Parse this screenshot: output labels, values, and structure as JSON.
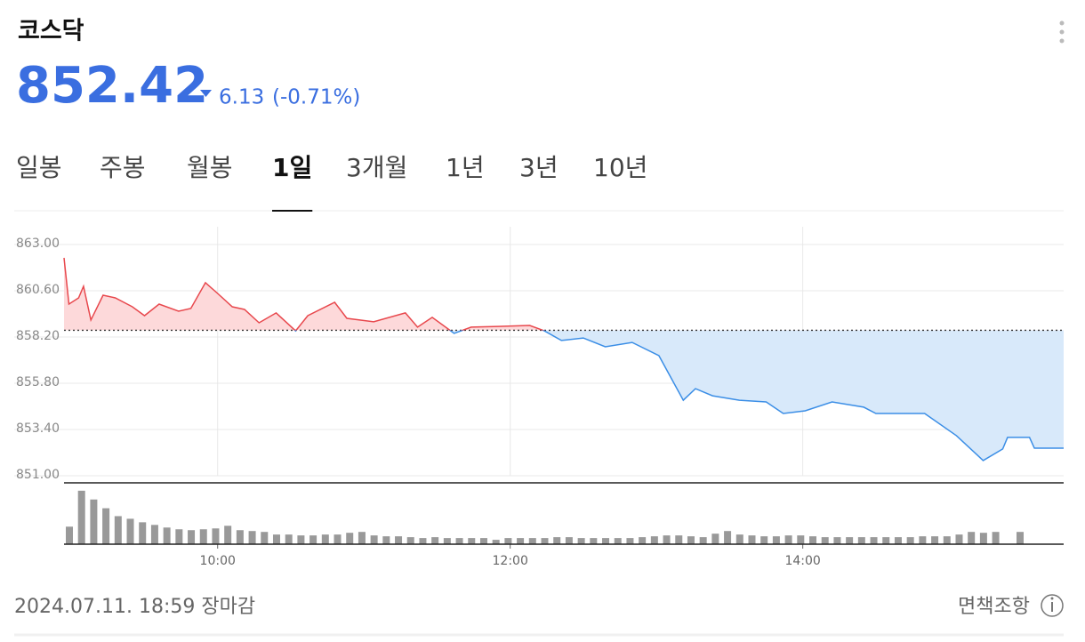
{
  "header": {
    "title": "코스닥",
    "price": "852.42",
    "change": "6.13",
    "change_pct": "(-0.71%)"
  },
  "tabs": {
    "items": [
      "일봉",
      "주봉",
      "월봉",
      "1일",
      "3개월",
      "1년",
      "3년",
      "10년"
    ],
    "selected": 3
  },
  "chart_data": {
    "type": "line",
    "base": 858.55,
    "up_color": "#e8484d",
    "down_color": "#3b8ee6",
    "up_fill": "#fdd9da",
    "down_fill": "#d8e9fa",
    "x": [
      537,
      539,
      543,
      545,
      548,
      553,
      558,
      565,
      570,
      576,
      584,
      589,
      595,
      600,
      606,
      611,
      617,
      624,
      632,
      637,
      648,
      653,
      664,
      677,
      682,
      688,
      697,
      704,
      715,
      728,
      734,
      741,
      750,
      759,
      770,
      781,
      791,
      796,
      803,
      814,
      825,
      832,
      841,
      852,
      865,
      870,
      890,
      903,
      914,
      922,
      924,
      933,
      935,
      947
    ],
    "series": [
      {
        "values": [
          862.31,
          859.91,
          860.23,
          860.83,
          859.08,
          860.37,
          860.23,
          859.77,
          859.31,
          859.91,
          859.54,
          859.68,
          861.02,
          860.46,
          859.77,
          859.63,
          858.94,
          859.45,
          858.52,
          859.31,
          860.0,
          859.17,
          858.99,
          859.45,
          858.71,
          859.22,
          858.39,
          858.71,
          858.75,
          858.8,
          858.52,
          858.02,
          858.15,
          857.69,
          857.92,
          857.23,
          854.92,
          855.52,
          855.15,
          854.92,
          854.83,
          854.23,
          854.37,
          854.83,
          854.56,
          854.23,
          854.23,
          853.08,
          851.79,
          852.39,
          852.99,
          852.99,
          852.43,
          852.43
        ]
      }
    ],
    "xlim": [
      537,
      947
    ],
    "xticks": [
      {
        "value": 600,
        "label": "10:00"
      },
      {
        "value": 720,
        "label": "12:00"
      },
      {
        "value": 840,
        "label": "14:00"
      }
    ],
    "ylim": [
      851,
      863
    ],
    "yticks": [
      {
        "value": 863,
        "label": "863.00"
      },
      {
        "value": 860.6,
        "label": "860.60"
      },
      {
        "value": 858.2,
        "label": "858.20"
      },
      {
        "value": 855.8,
        "label": "855.80"
      },
      {
        "value": 853.4,
        "label": "853.40"
      },
      {
        "value": 851,
        "label": "851.00"
      }
    ],
    "grid": true,
    "volume": {
      "color": "#999999",
      "ylim": [
        0,
        70
      ],
      "values": [
        20,
        61,
        51,
        41,
        32,
        29,
        25,
        22,
        19,
        17,
        16,
        17,
        18,
        21,
        16,
        15,
        14,
        11,
        11,
        10,
        10,
        11,
        11,
        13,
        14,
        10,
        9,
        9,
        8,
        7,
        8,
        7,
        7,
        7,
        7,
        5,
        7,
        7,
        7,
        7,
        8,
        8,
        7,
        7,
        7,
        7,
        7,
        8,
        9,
        10,
        10,
        9,
        8,
        12,
        15,
        11,
        10,
        9,
        9,
        10,
        10,
        9,
        8,
        8,
        8,
        8,
        8,
        8,
        8,
        8,
        9,
        9,
        9,
        11,
        14,
        13,
        14,
        null,
        14
      ]
    }
  },
  "footer": {
    "timestamp": "2024.07.11. 18:59 장마감",
    "disclaimer": "면책조항"
  }
}
